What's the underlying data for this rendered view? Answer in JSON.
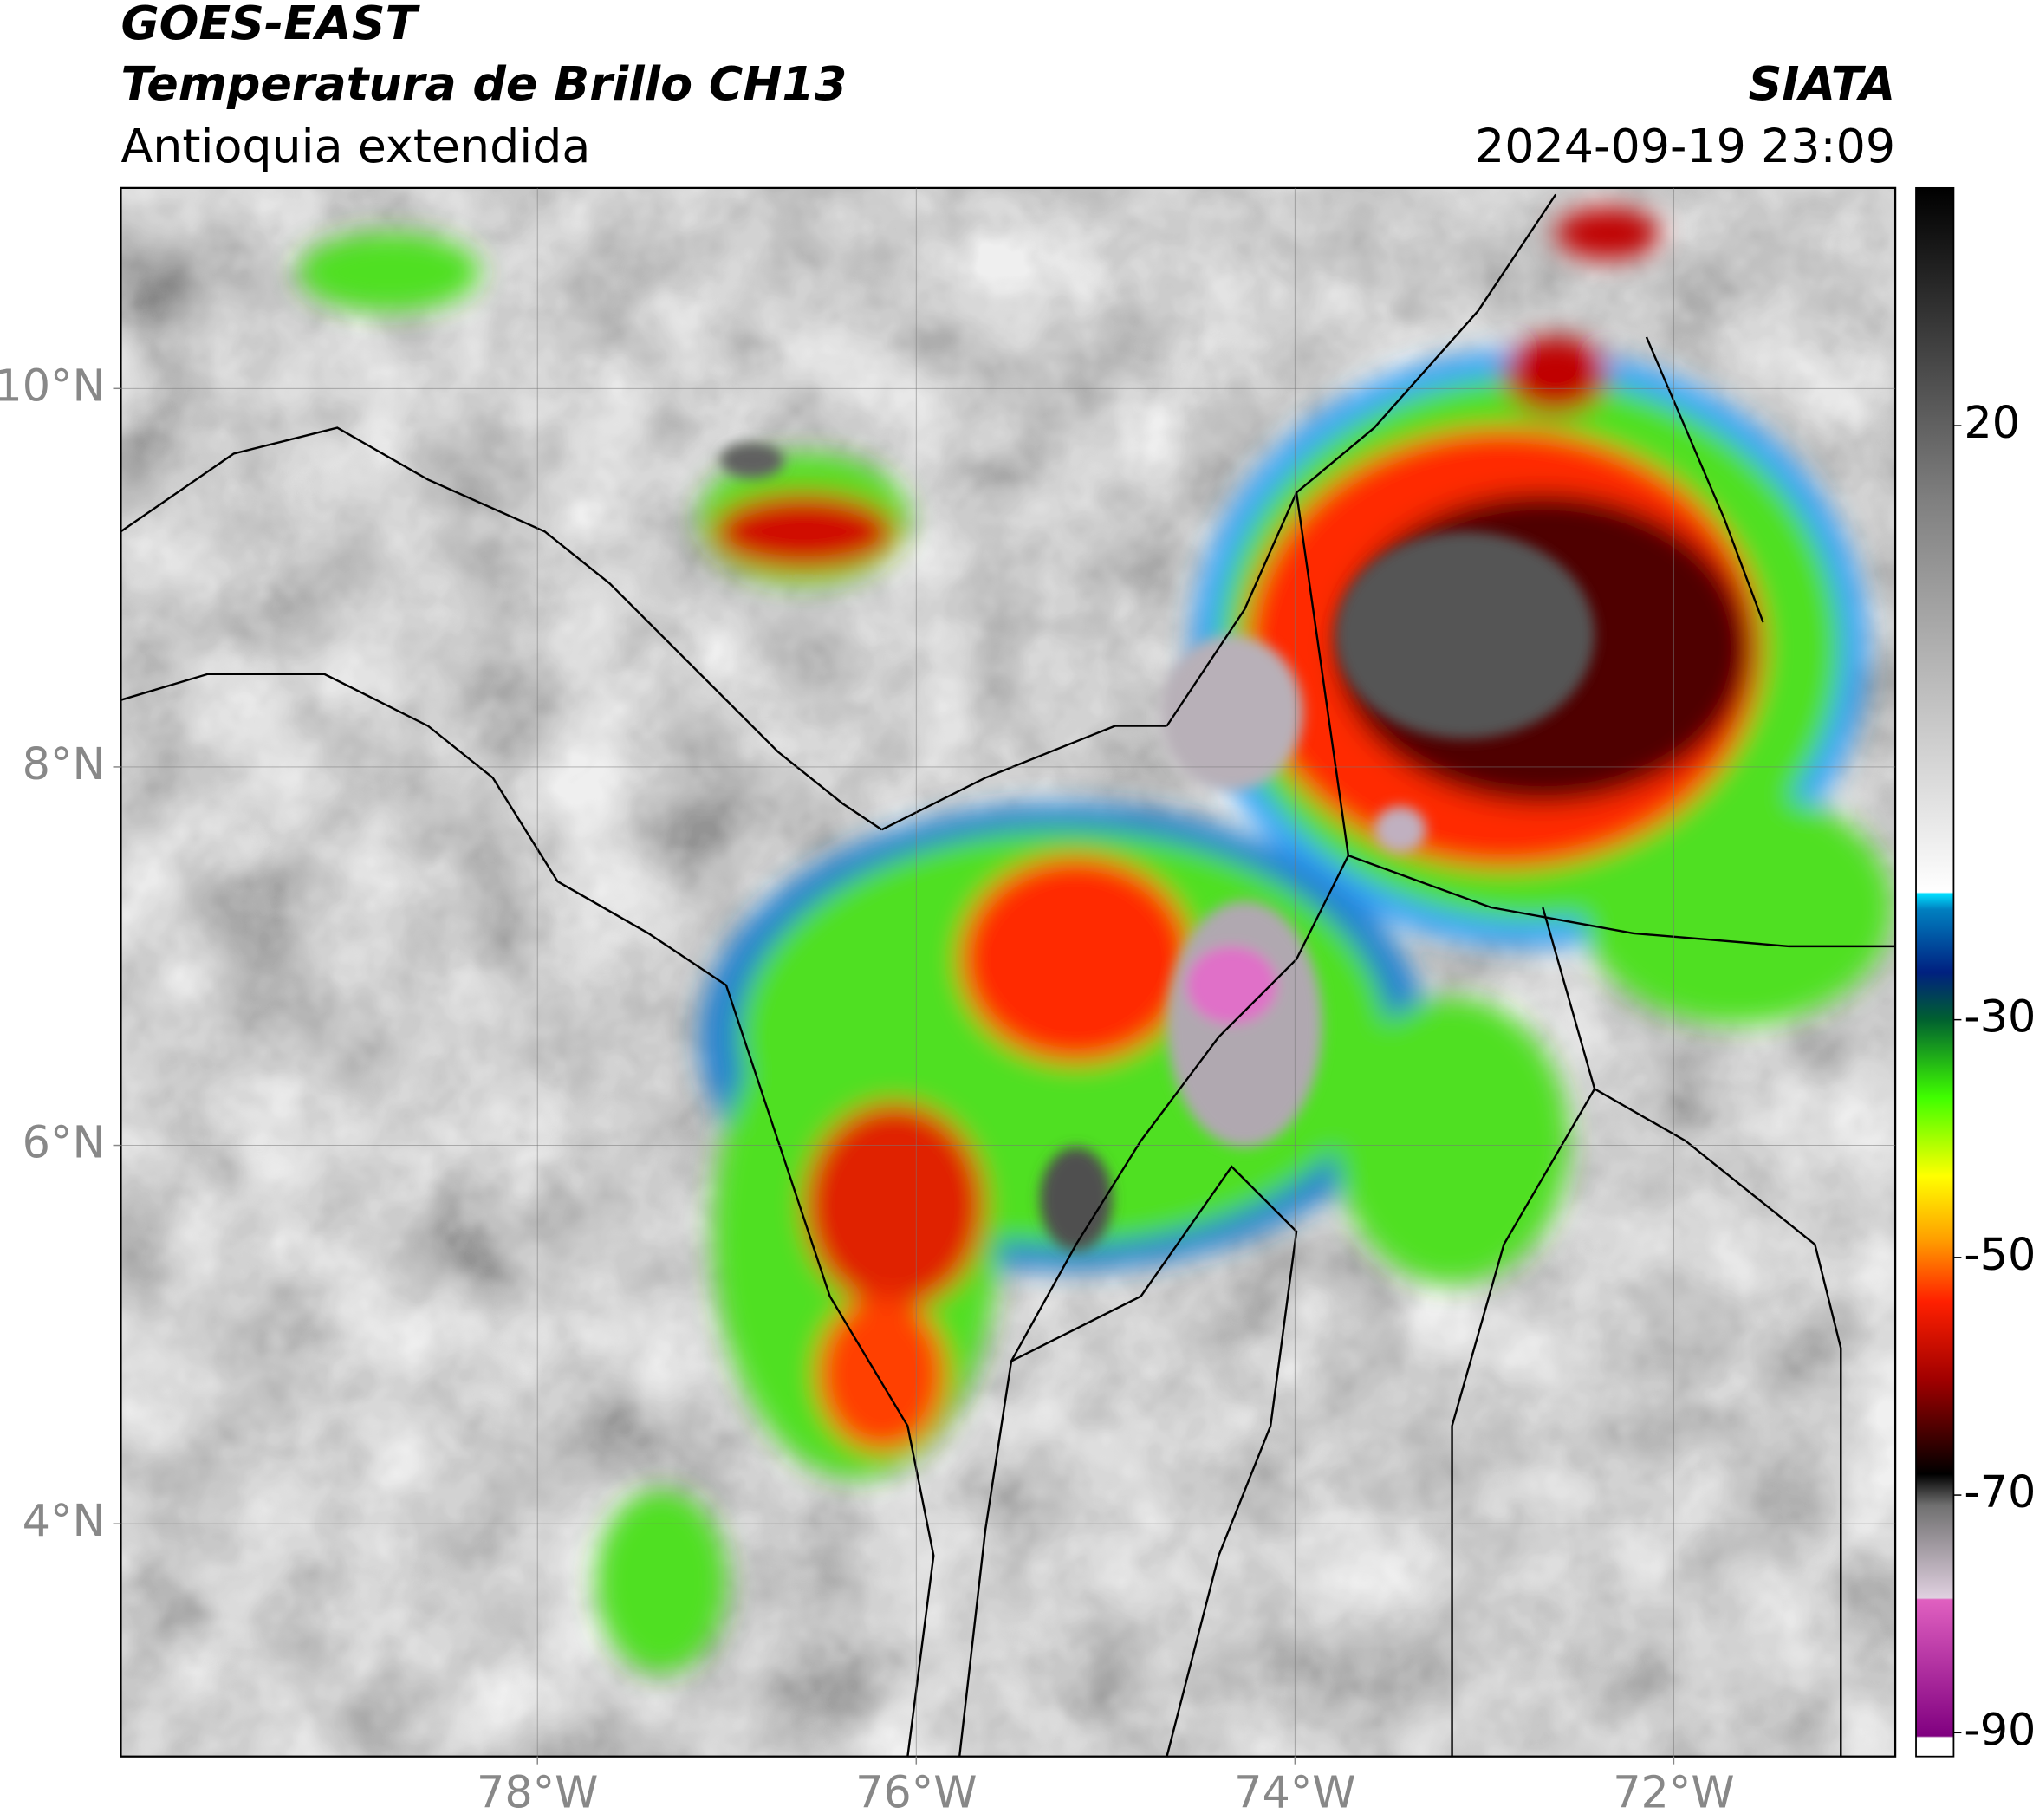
{
  "header": {
    "title": "GOES-EAST",
    "subtitle": "Temperatura de Brillo CH13",
    "region": "Antioquia extendida",
    "source": "SIATA",
    "datetime": "2024-09-19 23:09"
  },
  "map": {
    "xlim": [
      -80.2,
      -70.83
    ],
    "ylim": [
      2.77,
      11.06
    ],
    "xticks": [
      {
        "value": -78,
        "label": "78°W"
      },
      {
        "value": -76,
        "label": "76°W"
      },
      {
        "value": -74,
        "label": "74°W"
      },
      {
        "value": -72,
        "label": "72°W"
      }
    ],
    "yticks": [
      {
        "value": 10,
        "label": "10°N"
      },
      {
        "value": 8,
        "label": "8°N"
      },
      {
        "value": 6,
        "label": "6°N"
      },
      {
        "value": 4,
        "label": "4°N"
      }
    ],
    "grid": true
  },
  "colorbar": {
    "lim": [
      -92,
      40
    ],
    "ticks": [
      20,
      -30,
      -50,
      -70,
      -90
    ]
  }
}
